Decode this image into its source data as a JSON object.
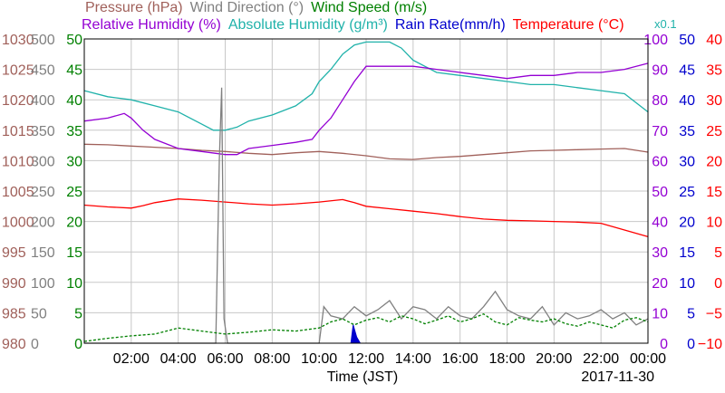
{
  "colors": {
    "pressure": "#a0605a",
    "wind_direction": "#808080",
    "wind_speed": "#008000",
    "relative_humidity": "#9400d3",
    "absolute_humidity": "#20b2aa",
    "rain_rate": "#0000cd",
    "temperature": "#ff0000"
  },
  "legend": {
    "pressure": "Pressure (hPa)",
    "wind_direction": "Wind Direction (°)",
    "wind_speed": "Wind Speed (m/s)",
    "relative_humidity": "Relative Humidity (%)",
    "absolute_humidity": "Absolute Humidity (g/m³)",
    "rain_rate": "Rain Rate(mm/h)",
    "temperature": "Temperature (°C)",
    "abs_humidity_scale_note": "x0.1"
  },
  "x_axis": {
    "title": "Time (JST)",
    "date": "2017-11-30"
  },
  "chart_data": {
    "type": "line",
    "title": "",
    "xlabel": "Time (JST)",
    "x_range_hours": [
      0,
      24
    ],
    "x_ticks": [
      "02:00",
      "04:00",
      "06:00",
      "08:00",
      "10:00",
      "12:00",
      "14:00",
      "16:00",
      "18:00",
      "20:00",
      "22:00",
      "00:00"
    ],
    "axes": {
      "pressure": {
        "unit": "hPa",
        "range": [
          980,
          1030
        ],
        "ticks": [
          "1030",
          "1025",
          "1020",
          "1015",
          "1010",
          "1005",
          "1000",
          "995",
          "990",
          "985",
          "980"
        ]
      },
      "wind_direction": {
        "unit": "°",
        "range": [
          0,
          500
        ],
        "ticks": [
          "500",
          "450",
          "400",
          "350",
          "300",
          "250",
          "200",
          "150",
          "100",
          "50",
          "0"
        ]
      },
      "wind_speed": {
        "unit": "m/s",
        "range": [
          0,
          50
        ],
        "ticks": [
          "50",
          "45",
          "40",
          "35",
          "30",
          "25",
          "20",
          "15",
          "10",
          "5",
          "0"
        ]
      },
      "relative_humidity": {
        "unit": "%",
        "range": [
          0,
          100
        ],
        "ticks": [
          "100",
          "90",
          "80",
          "70",
          "60",
          "50",
          "40",
          "30",
          "20",
          "10",
          "0"
        ]
      },
      "rain_rate": {
        "unit": "mm/h",
        "range": [
          0,
          50
        ],
        "ticks": [
          "50",
          "45",
          "40",
          "35",
          "30",
          "25",
          "20",
          "15",
          "10",
          "5",
          "0"
        ]
      },
      "temperature": {
        "unit": "°C",
        "range": [
          -10,
          40
        ],
        "ticks": [
          "40",
          "35",
          "30",
          "25",
          "20",
          "15",
          "10",
          "5",
          "0",
          "−5",
          "−10"
        ]
      }
    },
    "series": [
      {
        "name": "Pressure (hPa)",
        "axis": "pressure",
        "x": [
          0,
          1,
          2,
          3,
          4,
          5,
          6,
          7,
          8,
          9,
          10,
          11,
          12,
          13,
          14,
          15,
          16,
          17,
          18,
          19,
          20,
          21,
          22,
          23,
          24
        ],
        "values": [
          1012.7,
          1012.6,
          1012.4,
          1012.2,
          1012.0,
          1011.7,
          1011.5,
          1011.2,
          1011.0,
          1011.3,
          1011.5,
          1011.2,
          1010.8,
          1010.3,
          1010.2,
          1010.5,
          1010.7,
          1011.0,
          1011.3,
          1011.6,
          1011.7,
          1011.8,
          1011.9,
          1012.0,
          1011.4
        ]
      },
      {
        "name": "Absolute Humidity (g/m³)",
        "axis": "relative_humidity",
        "x": [
          0,
          1,
          2,
          3,
          4,
          5,
          5.5,
          6,
          6.5,
          7,
          8,
          9,
          9.7,
          10,
          10.5,
          11,
          11.5,
          12,
          13,
          13.5,
          14,
          15,
          16,
          17,
          18,
          19,
          20,
          21,
          22,
          23,
          24
        ],
        "values": [
          83,
          81,
          80,
          78,
          76,
          72,
          70,
          70,
          71,
          73,
          75,
          78,
          82,
          86,
          90,
          95,
          98,
          99,
          99,
          97,
          93,
          89,
          88,
          87,
          86,
          85,
          85,
          84,
          83,
          82,
          76
        ]
      },
      {
        "name": "Relative Humidity (%)",
        "axis": "relative_humidity",
        "x": [
          0,
          1,
          1.7,
          2,
          2.5,
          3,
          4,
          5,
          6,
          6.5,
          7,
          8,
          9,
          9.7,
          10,
          10.5,
          11,
          11.5,
          12,
          12.5,
          13,
          14,
          15,
          16,
          17,
          18,
          19,
          20,
          21,
          22,
          23,
          24
        ],
        "values": [
          73,
          74,
          75.5,
          74,
          70,
          67,
          64,
          63,
          62,
          62,
          64,
          65,
          66,
          67,
          70,
          74,
          80,
          86,
          91,
          91,
          91,
          91,
          90,
          89,
          88,
          87,
          88,
          88,
          89,
          89,
          90,
          92
        ]
      },
      {
        "name": "Temperature (°C)",
        "axis": "temperature",
        "x": [
          0,
          1,
          2,
          2.5,
          3,
          4,
          5,
          6,
          7,
          8,
          9,
          10,
          11,
          11.5,
          12,
          13,
          14,
          15,
          16,
          17,
          18,
          19,
          20,
          21,
          22,
          23,
          24
        ],
        "values": [
          12.7,
          12.4,
          12.2,
          12.6,
          13.1,
          13.7,
          13.5,
          13.2,
          12.9,
          12.7,
          12.9,
          13.2,
          13.6,
          13.1,
          12.5,
          12.1,
          11.7,
          11.3,
          10.8,
          10.4,
          10.2,
          10.1,
          10.0,
          9.9,
          9.7,
          8.6,
          7.5
        ]
      },
      {
        "name": "Wind Direction (°)",
        "axis": "wind_direction",
        "x": [
          0,
          5.6,
          5.75,
          5.85,
          5.95,
          6.1,
          10,
          10.2,
          10.5,
          11,
          11.5,
          12,
          12.5,
          13,
          13.5,
          14,
          14.5,
          15,
          15.5,
          16,
          16.5,
          17,
          17.5,
          18,
          18.5,
          19,
          19.5,
          20,
          20.5,
          21,
          21.5,
          22,
          22.5,
          23,
          23.5,
          24
        ],
        "values": [
          0,
          0,
          300,
          420,
          40,
          0,
          0,
          60,
          45,
          40,
          60,
          45,
          55,
          70,
          40,
          60,
          55,
          40,
          60,
          45,
          40,
          60,
          85,
          55,
          45,
          40,
          60,
          30,
          50,
          40,
          45,
          55,
          40,
          50,
          30,
          40
        ]
      },
      {
        "name": "Wind Speed (m/s)",
        "axis": "wind_speed",
        "x": [
          0,
          1,
          2,
          3,
          4,
          5,
          6,
          7,
          8,
          9,
          10,
          10.5,
          11,
          11.5,
          12,
          12.5,
          13,
          13.5,
          14,
          14.5,
          15,
          15.5,
          16,
          16.5,
          17,
          17.5,
          18,
          18.5,
          19,
          19.5,
          20,
          20.5,
          21,
          21.5,
          22,
          22.5,
          23,
          23.5,
          24
        ],
        "values": [
          0.3,
          0.8,
          1.2,
          1.5,
          2.5,
          2.0,
          1.5,
          1.8,
          2.2,
          2.0,
          2.5,
          3.5,
          4.0,
          3.0,
          3.8,
          4.2,
          3.5,
          4.5,
          4.0,
          3.2,
          3.8,
          4.5,
          3.5,
          4.0,
          4.8,
          3.5,
          3.0,
          4.2,
          3.8,
          3.5,
          4.0,
          3.2,
          2.8,
          3.5,
          3.0,
          2.5,
          3.8,
          4.2,
          3.5
        ]
      },
      {
        "name": "Rain Rate(mm/h)",
        "axis": "rain_rate",
        "x": [
          0,
          11.35,
          11.45,
          11.6,
          11.75,
          24
        ],
        "values": [
          0,
          0,
          3.0,
          1.0,
          0,
          0
        ]
      }
    ]
  }
}
